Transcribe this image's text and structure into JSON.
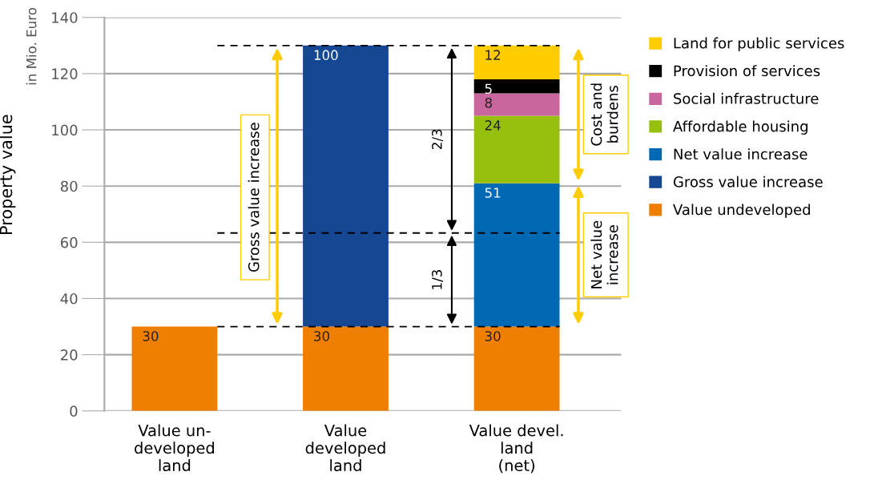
{
  "chart_data": {
    "type": "bar",
    "stacked": true,
    "ylabel": "Property value",
    "categories": [
      "Value un-\ndeveloped\nland",
      "Value\ndeveloped\nland",
      "Value devel.\nland\n(net)"
    ],
    "series": [
      {
        "name": "Value undeveloped",
        "color": "#ee7f00",
        "values": [
          30,
          30,
          30
        ]
      },
      {
        "name": "Gross value increase",
        "color": "#164793",
        "values": [
          null,
          100,
          null
        ]
      },
      {
        "name": "Net value increase",
        "color": "#0069b4",
        "values": [
          null,
          null,
          51
        ]
      },
      {
        "name": "Affordable housing",
        "color": "#97bf0d",
        "values": [
          null,
          null,
          24
        ]
      },
      {
        "name": "Social infrastructure",
        "color": "#c9669e",
        "values": [
          null,
          null,
          8
        ]
      },
      {
        "name": "Provision of services",
        "color": "#000000",
        "values": [
          null,
          null,
          5
        ]
      },
      {
        "name": "Land for public services",
        "color": "#ffcc00",
        "values": [
          null,
          null,
          12
        ]
      }
    ],
    "ylim": [
      0,
      140
    ],
    "yticks": [
      0,
      20,
      40,
      60,
      80,
      100,
      120,
      140
    ],
    "grid": "y",
    "legend": "right",
    "data_labels": true,
    "ref_lines": [
      {
        "axis": "y",
        "value": 130,
        "label": null,
        "color": "#000000",
        "line_style": "dashed"
      },
      {
        "axis": "y",
        "value": 63.3,
        "label": null,
        "color": "#000000",
        "line_style": "dashed"
      },
      {
        "axis": "y",
        "value": 30,
        "label": null,
        "color": "#000000",
        "line_style": "dashed"
      }
    ],
    "annotations": [
      "in Mio. Euro",
      "Gross value increase",
      "2/3",
      "1/3",
      "Cost and\nburdens",
      "Net value\nincrease"
    ]
  }
}
